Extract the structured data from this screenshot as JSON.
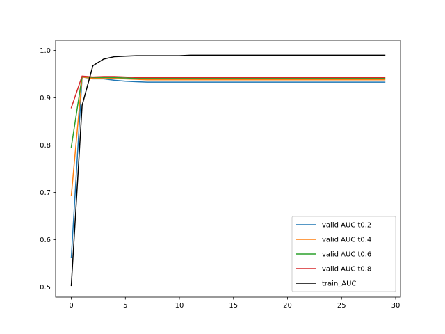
{
  "chart_data": {
    "type": "line",
    "title": "",
    "xlabel": "",
    "ylabel": "",
    "xlim": [
      -1.45,
      30.45
    ],
    "ylim": [
      0.4785,
      1.0215
    ],
    "xticks": [
      0,
      5,
      10,
      15,
      20,
      25,
      30
    ],
    "yticks": [
      0.5,
      0.6,
      0.7,
      0.8,
      0.9,
      1.0
    ],
    "xtick_labels": [
      "0",
      "5",
      "10",
      "15",
      "20",
      "25",
      "30"
    ],
    "ytick_labels": [
      "0.5",
      "0.6",
      "0.7",
      "0.8",
      "0.9",
      "1.0"
    ],
    "grid": false,
    "legend_position": "lower-right",
    "x": [
      0,
      1,
      2,
      3,
      4,
      5,
      6,
      7,
      8,
      9,
      10,
      11,
      12,
      13,
      14,
      15,
      16,
      17,
      18,
      19,
      20,
      21,
      22,
      23,
      24,
      25,
      26,
      27,
      28,
      29
    ],
    "series": [
      {
        "name": "valid AUC t0.2",
        "color": "#1f77b4",
        "values": [
          0.562,
          0.944,
          0.94,
          0.94,
          0.937,
          0.935,
          0.934,
          0.933,
          0.933,
          0.933,
          0.933,
          0.933,
          0.933,
          0.933,
          0.933,
          0.933,
          0.933,
          0.933,
          0.933,
          0.933,
          0.933,
          0.933,
          0.933,
          0.933,
          0.933,
          0.933,
          0.933,
          0.933,
          0.933,
          0.933
        ]
      },
      {
        "name": "valid AUC t0.4",
        "color": "#ff7f0e",
        "values": [
          0.693,
          0.944,
          0.941,
          0.942,
          0.941,
          0.94,
          0.939,
          0.938,
          0.938,
          0.938,
          0.938,
          0.938,
          0.938,
          0.938,
          0.938,
          0.938,
          0.938,
          0.938,
          0.938,
          0.938,
          0.938,
          0.938,
          0.938,
          0.938,
          0.938,
          0.938,
          0.938,
          0.938,
          0.938,
          0.938
        ]
      },
      {
        "name": "valid AUC t0.6",
        "color": "#2ca02c",
        "values": [
          0.796,
          0.945,
          0.943,
          0.943,
          0.943,
          0.942,
          0.941,
          0.941,
          0.941,
          0.941,
          0.941,
          0.941,
          0.941,
          0.941,
          0.941,
          0.941,
          0.941,
          0.941,
          0.941,
          0.941,
          0.941,
          0.941,
          0.941,
          0.941,
          0.941,
          0.941,
          0.941,
          0.941,
          0.941,
          0.941
        ]
      },
      {
        "name": "valid AUC t0.8",
        "color": "#d62728",
        "values": [
          0.879,
          0.946,
          0.944,
          0.945,
          0.945,
          0.944,
          0.943,
          0.943,
          0.943,
          0.943,
          0.943,
          0.943,
          0.943,
          0.943,
          0.943,
          0.943,
          0.943,
          0.943,
          0.943,
          0.943,
          0.943,
          0.943,
          0.943,
          0.943,
          0.943,
          0.943,
          0.943,
          0.943,
          0.943,
          0.943
        ]
      },
      {
        "name": "train_AUC",
        "color": "#000000",
        "values": [
          0.503,
          0.884,
          0.968,
          0.982,
          0.987,
          0.988,
          0.989,
          0.989,
          0.989,
          0.989,
          0.989,
          0.99,
          0.99,
          0.99,
          0.99,
          0.99,
          0.99,
          0.99,
          0.99,
          0.99,
          0.99,
          0.99,
          0.99,
          0.99,
          0.99,
          0.99,
          0.99,
          0.99,
          0.99,
          0.99
        ]
      }
    ]
  }
}
